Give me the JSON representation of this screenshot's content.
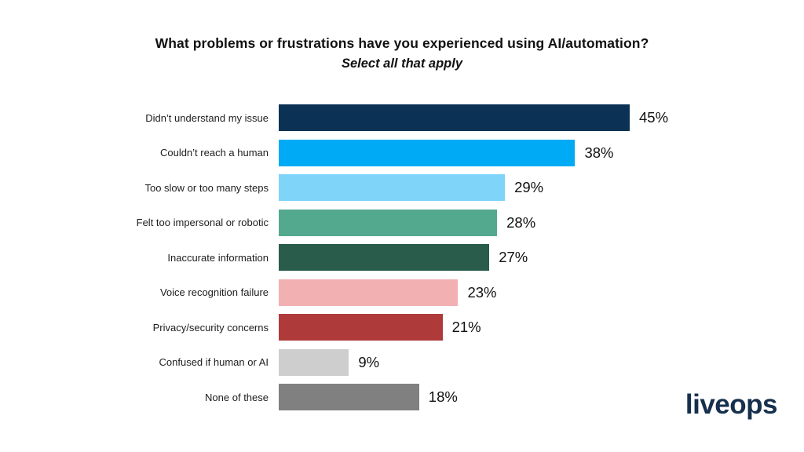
{
  "header": {
    "title": "What problems or frustrations have you experienced using AI/automation?",
    "subtitle": "Select all that apply"
  },
  "chart_data": {
    "type": "bar",
    "orientation": "horizontal",
    "title": "What problems or frustrations have you experienced using AI/automation?",
    "subtitle": "Select all that apply",
    "categories": [
      "Didn’t understand my issue",
      "Couldn’t reach a human",
      "Too slow or too many steps",
      "Felt too impersonal or robotic",
      "Inaccurate information",
      "Voice recognition failure",
      "Privacy/security concerns",
      "Confused if human or AI",
      "None of these"
    ],
    "values": [
      45,
      38,
      29,
      28,
      27,
      23,
      21,
      9,
      18
    ],
    "value_labels": [
      "45%",
      "38%",
      "29%",
      "28%",
      "27%",
      "23%",
      "21%",
      "9%",
      "18%"
    ],
    "colors": [
      "#0b3254",
      "#00aaf4",
      "#7fd4f9",
      "#53a98e",
      "#295c4a",
      "#f3b0b3",
      "#ae3b3a",
      "#cecece",
      "#808080"
    ],
    "xlim": [
      0,
      45
    ],
    "grid": false,
    "legend": false,
    "value_label_position": "outside-end",
    "unit": "%"
  },
  "branding": {
    "logo_text": "liveops",
    "logo_color": "#16304d"
  }
}
